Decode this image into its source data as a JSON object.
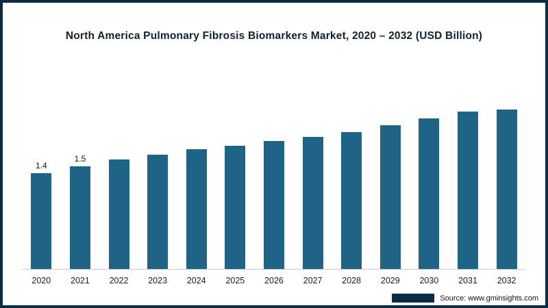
{
  "chart_data": {
    "type": "bar",
    "title": "North America Pulmonary Fibrosis Biomarkers Market, 2020 – 2032 (USD Billion)",
    "categories": [
      "2020",
      "2021",
      "2022",
      "2023",
      "2024",
      "2025",
      "2026",
      "2027",
      "2028",
      "2029",
      "2030",
      "2031",
      "2032"
    ],
    "values": [
      1.4,
      1.5,
      1.6,
      1.67,
      1.75,
      1.8,
      1.87,
      1.93,
      2.0,
      2.1,
      2.2,
      2.3,
      2.4
    ],
    "data_labels": [
      "1.4",
      "1.5",
      "",
      "",
      "",
      "",
      "",
      "",
      "",
      "",
      "",
      "",
      ""
    ],
    "xlabel": "",
    "ylabel": "",
    "ylim": [
      0,
      2.52
    ],
    "grid": false,
    "legend_position": "none",
    "bar_color": "#1f6487",
    "axis_line_color": "#c9c9c9"
  },
  "source": {
    "label": "Source: www.gminsights.com"
  }
}
